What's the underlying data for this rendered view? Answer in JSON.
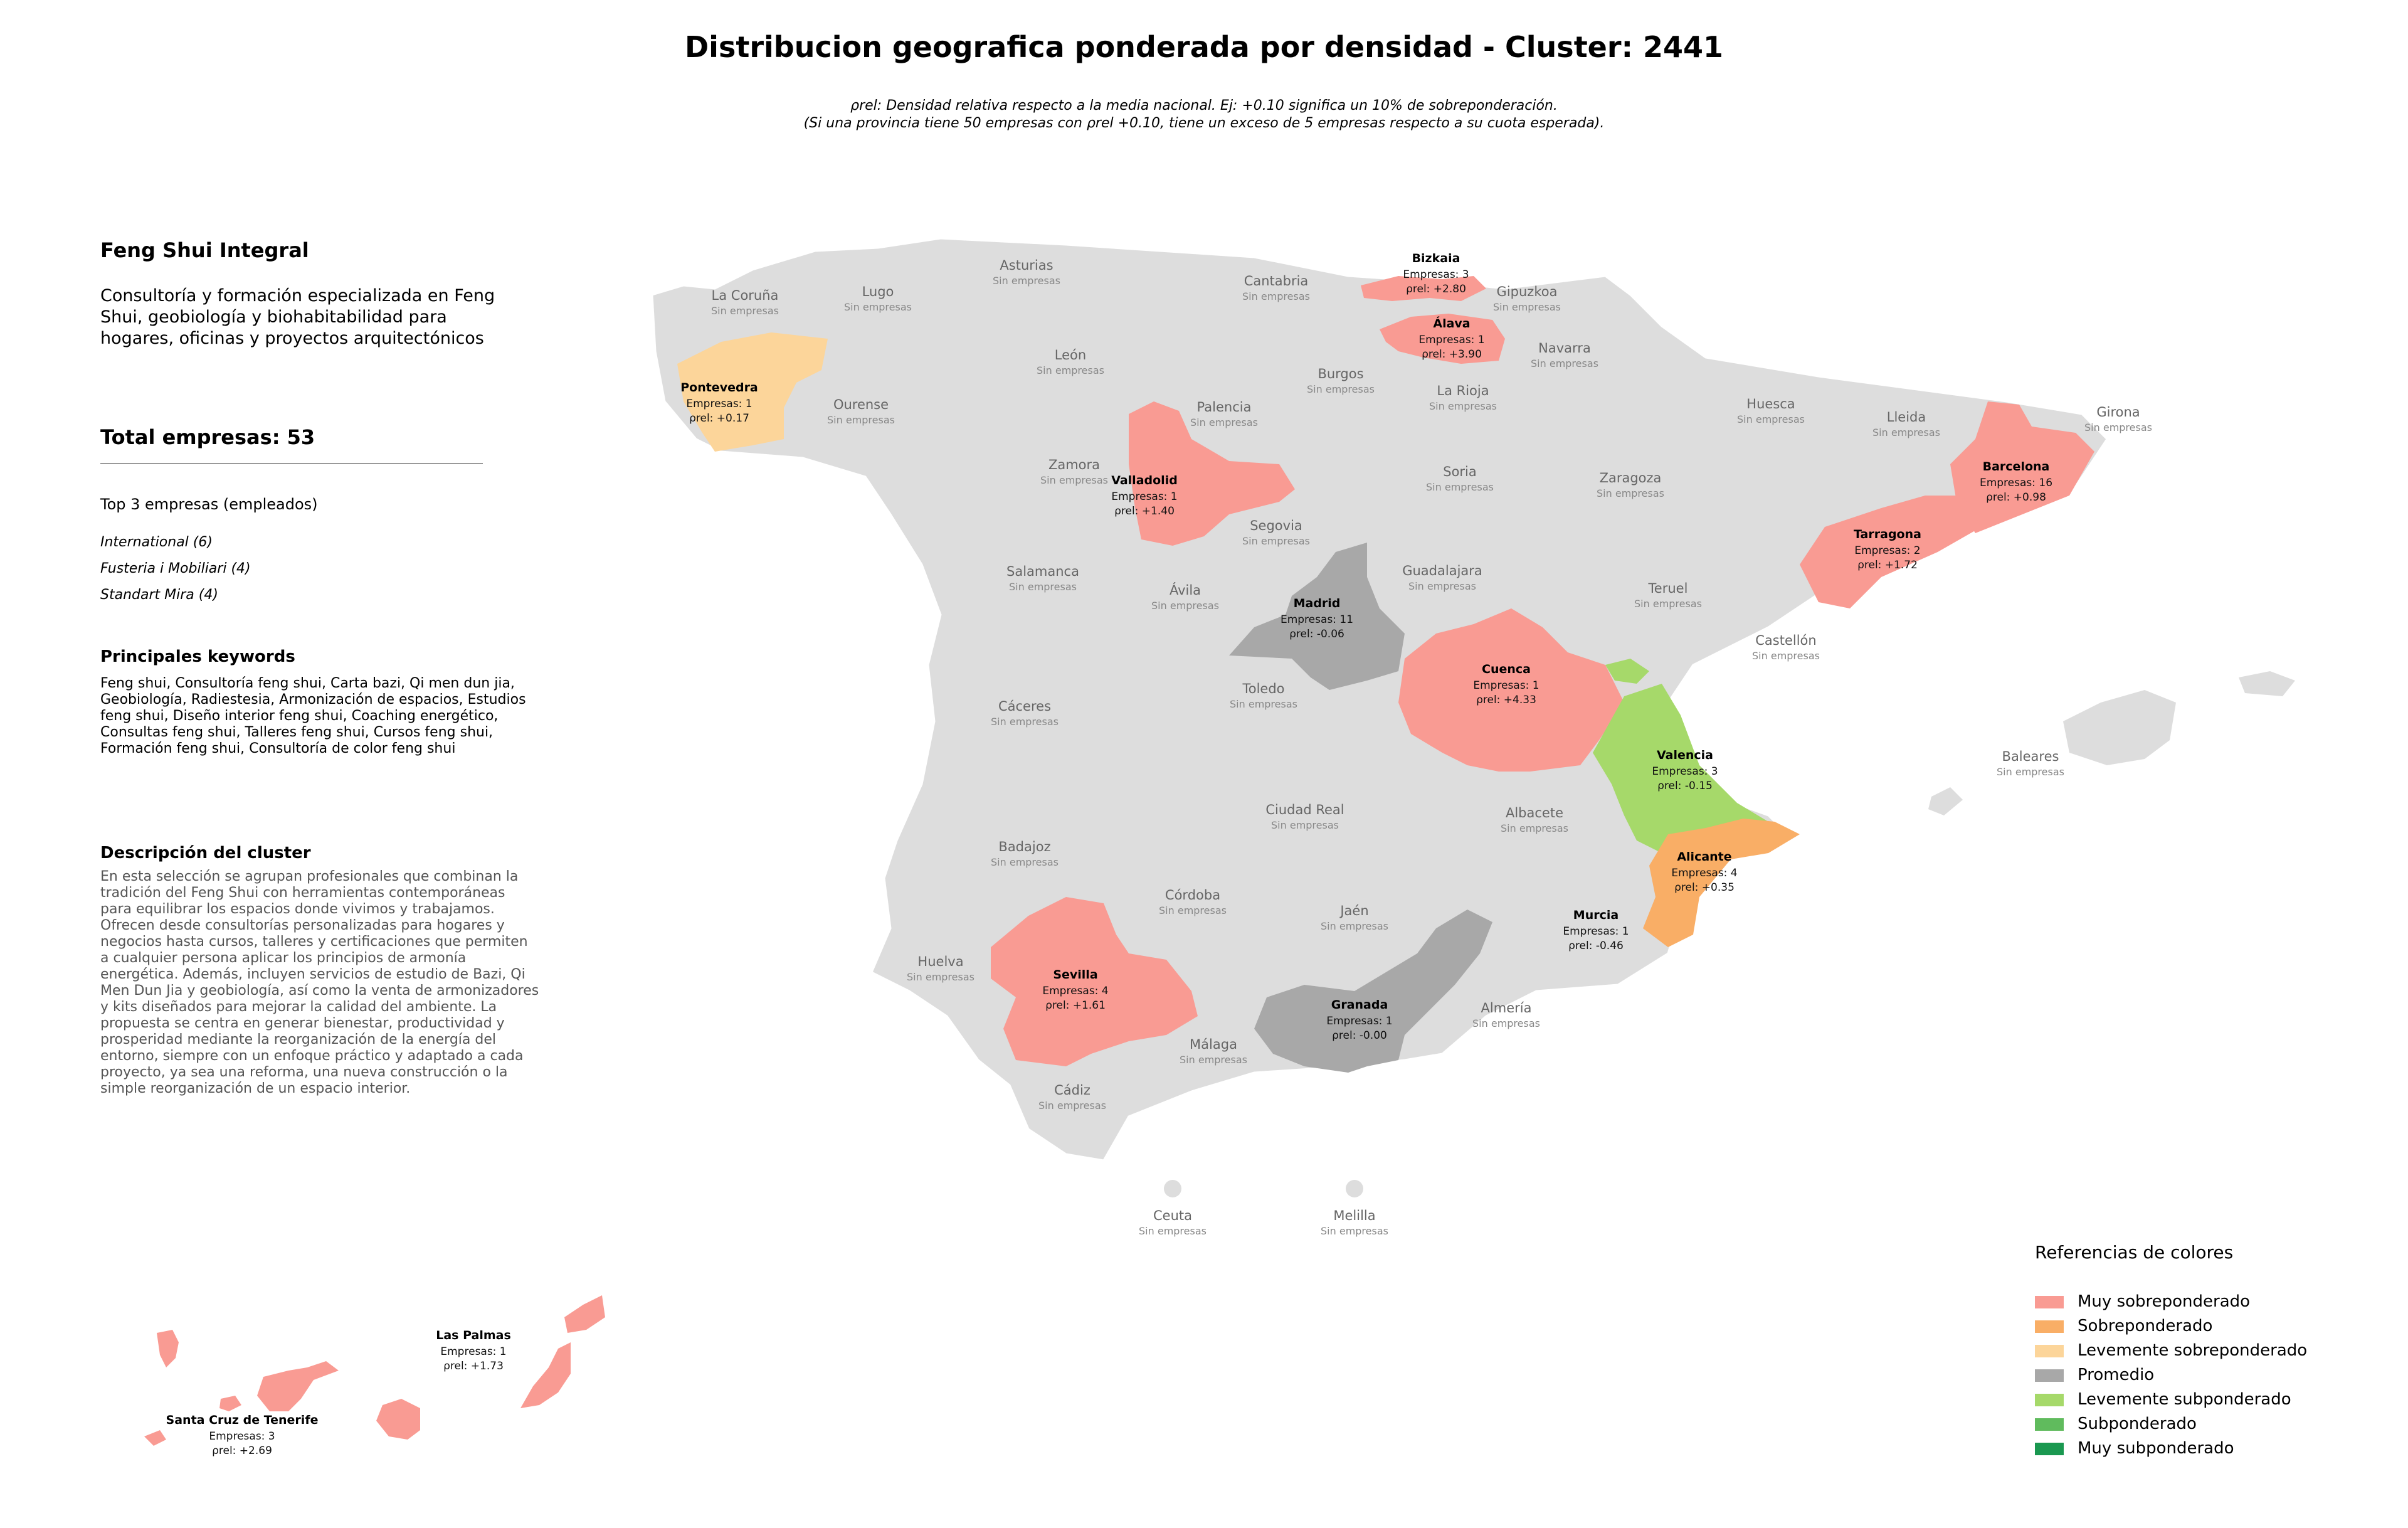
{
  "title": "Distribucion geografica ponderada por densidad - Cluster: 2441",
  "note_line1": "ρrel: Densidad relativa respecto a la media nacional. Ej: +0.10 significa un 10% de sobreponderación.",
  "note_line2": "(Si una provincia tiene 50 empresas con ρrel +0.10, tiene un exceso de 5 empresas respecto a su cuota esperada).",
  "company_name": "Feng Shui Integral",
  "company_description": "Consultoría y formación especializada en Feng Shui, geobiología y biohabitabilidad para hogares, oficinas y proyectos arquitectónicos",
  "total": "Total empresas: 53",
  "top3_title": "Top 3 empresas (empleados)",
  "top3": [
    "International (6)",
    "Fusteria i Mobiliari (4)",
    "Standart Mira (4)"
  ],
  "keywords_title": "Principales keywords",
  "keywords": "Feng shui, Consultoría feng shui, Carta bazi, Qi men dun jia, Geobiología, Radiestesia, Armonización de espacios, Estudios feng shui, Diseño interior feng shui, Coaching energético, Consultas feng shui, Talleres feng shui, Cursos feng shui, Formación feng shui, Consultoría de color feng shui",
  "cluster_title": "Descripción del cluster",
  "cluster_description": "En esta selección se agrupan profesionales que combinan la tradición del Feng Shui con herramientas contemporáneas para equilibrar los espacios donde vivimos y trabajamos. Ofrecen desde consultorías personalizadas para hogares y negocios hasta cursos, talleres y certificaciones que permiten a cualquier persona aplicar los principios de armonía energética. Además, incluyen servicios de estudio de Bazi, Qi Men Dun Jia y geobiología, así como la venta de armonizadores y kits diseñados para mejorar la calidad del ambiente. La propuesta se centra en generar bienestar, productividad y prosperidad mediante la reorganización de la energía del entorno, siempre con un enfoque práctico y adaptado a cada proyecto, ya sea una reforma, una nueva construcción o la simple reorganización de un espacio interior.",
  "no_companies": "Sin empresas",
  "colors": {
    "land": "#dddddd",
    "muy_sobre": "#f99b93",
    "sobre": "#f9ae66",
    "lev_sobre": "#fcd59a",
    "promedio": "#a8a8a8",
    "lev_sub": "#a6d96a",
    "sub": "#60bb5d",
    "muy_sub": "#1a9850"
  },
  "legend_title": "Referencias de colores",
  "legend": [
    {
      "label": "Muy sobreponderado",
      "color": "#f99b93"
    },
    {
      "label": "Sobreponderado",
      "color": "#f9ae66"
    },
    {
      "label": "Levemente sobreponderado",
      "color": "#fcd59a"
    },
    {
      "label": "Promedio",
      "color": "#a8a8a8"
    },
    {
      "label": "Levemente subponderado",
      "color": "#a6d96a"
    },
    {
      "label": "Subponderado",
      "color": "#60bb5d"
    },
    {
      "label": "Muy subponderado",
      "color": "#1a9850"
    }
  ],
  "highlighted": [
    {
      "name": "Bizkaia",
      "empresas": "Empresas: 3",
      "rho": "+2.80"
    },
    {
      "name": "Álava",
      "empresas": "Empresas: 1",
      "rho": "+3.90"
    },
    {
      "name": "Pontevedra",
      "empresas": "Empresas: 1",
      "rho": "+0.17"
    },
    {
      "name": "Valladolid",
      "empresas": "Empresas: 1",
      "rho": "+1.40"
    },
    {
      "name": "Barcelona",
      "empresas": "Empresas: 16",
      "rho": "+0.98"
    },
    {
      "name": "Tarragona",
      "empresas": "Empresas: 2",
      "rho": "+1.72"
    },
    {
      "name": "Madrid",
      "empresas": "Empresas: 11",
      "rho": "-0.06"
    },
    {
      "name": "Cuenca",
      "empresas": "Empresas: 1",
      "rho": "+4.33"
    },
    {
      "name": "Valencia",
      "empresas": "Empresas: 3",
      "rho": "-0.15"
    },
    {
      "name": "Alicante",
      "empresas": "Empresas: 4",
      "rho": "+0.35"
    },
    {
      "name": "Murcia",
      "empresas": "Empresas: 1",
      "rho": "-0.46"
    },
    {
      "name": "Sevilla",
      "empresas": "Empresas: 4",
      "rho": "+1.61"
    },
    {
      "name": "Granada",
      "empresas": "Empresas: 1",
      "rho": "-0.00"
    },
    {
      "name": "Las Palmas",
      "empresas": "Empresas: 1",
      "rho": "+1.73"
    },
    {
      "name": "Santa Cruz de Tenerife",
      "empresas": "Empresas: 3",
      "rho": "+2.69"
    }
  ],
  "empty_provinces": [
    "La Coruña",
    "Lugo",
    "Asturias",
    "Cantabria",
    "Gipuzkoa",
    "Navarra",
    "León",
    "Burgos",
    "La Rioja",
    "Palencia",
    "Ourense",
    "Huesca",
    "Lleida",
    "Girona",
    "Zamora",
    "Soria",
    "Zaragoza",
    "Segovia",
    "Salamanca",
    "Guadalajara",
    "Ávila",
    "Teruel",
    "Castellón",
    "Toledo",
    "Cáceres",
    "Baleares",
    "Ciudad Real",
    "Albacete",
    "Badajoz",
    "Córdoba",
    "Jaén",
    "Huelva",
    "Málaga",
    "Almería",
    "Cádiz",
    "Ceuta",
    "Melilla"
  ]
}
